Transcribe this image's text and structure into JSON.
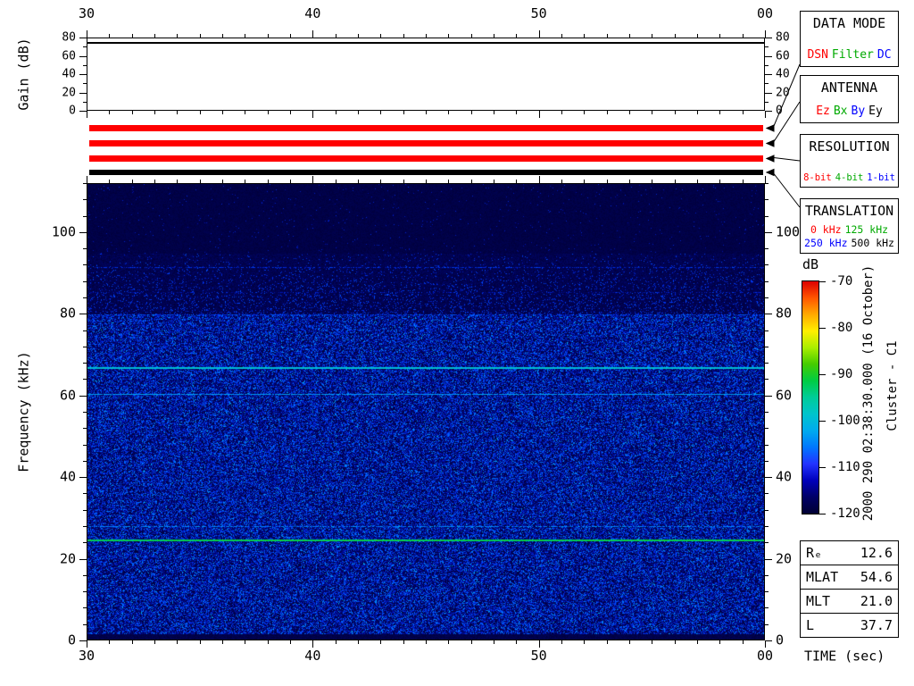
{
  "side_text": {
    "timestamp": "2000 290 02:38:30.000 (16 October)",
    "spacecraft": "Cluster - C1"
  },
  "time_axis": {
    "label": "TIME (sec)",
    "tick_values": [
      0,
      10,
      20,
      30
    ],
    "tick_labels": [
      "30",
      "40",
      "50",
      "00"
    ]
  },
  "freq_axis": {
    "label": "Frequency (kHz)",
    "tick_values": [
      0,
      20,
      40,
      60,
      80,
      100
    ],
    "tick_labels": [
      "0",
      "20",
      "40",
      "60",
      "80",
      "100"
    ]
  },
  "gain_plot": {
    "ylabel": "Gain (dB)",
    "tick_values": [
      0,
      20,
      40,
      60,
      80
    ],
    "tick_labels": [
      "0",
      "20",
      "40",
      "60",
      "80"
    ],
    "gain_line_db": 75
  },
  "status_stripes": [
    {
      "name": "data-mode",
      "color": "#ff0000"
    },
    {
      "name": "antenna",
      "color": "#ff0000"
    },
    {
      "name": "resolution",
      "color": "#ff0000"
    },
    {
      "name": "translation",
      "color": "#000000"
    }
  ],
  "panels": {
    "data_mode": {
      "title": "DATA MODE",
      "options": [
        {
          "label": "DSN",
          "color": "#ff0000"
        },
        {
          "label": "Filter",
          "color": "#00aa00"
        },
        {
          "label": "DC",
          "color": "#0000ff"
        }
      ]
    },
    "antenna": {
      "title": "ANTENNA",
      "options": [
        {
          "label": "Ez",
          "color": "#ff0000"
        },
        {
          "label": "Bx",
          "color": "#00aa00"
        },
        {
          "label": "By",
          "color": "#0000ff"
        },
        {
          "label": "Ey",
          "color": "#000000"
        }
      ]
    },
    "resolution": {
      "title": "RESOLUTION",
      "options": [
        {
          "label": "8-bit",
          "color": "#ff0000"
        },
        {
          "label": "4-bit",
          "color": "#00aa00"
        },
        {
          "label": "1-bit",
          "color": "#0000ff"
        }
      ]
    },
    "translation": {
      "title": "TRANSLATION",
      "options": [
        {
          "label": "0 kHz",
          "color": "#ff0000"
        },
        {
          "label": "125 kHz",
          "color": "#00aa00"
        },
        {
          "label": "250 kHz",
          "color": "#0000ff"
        },
        {
          "label": "500 kHz",
          "color": "#000000"
        }
      ]
    }
  },
  "colorbar": {
    "label": "dB",
    "tick_values": [
      -70,
      -80,
      -90,
      -100,
      -110,
      -120
    ],
    "tick_labels": [
      "-70",
      "-80",
      "-90",
      "-100",
      "-110",
      "-120"
    ],
    "scale_colors": [
      "#dd0000",
      "#ff5500",
      "#ffaa00",
      "#ffee00",
      "#aaee00",
      "#44cc00",
      "#00cc44",
      "#00cc99",
      "#00c4cc",
      "#00aaee",
      "#0077ff",
      "#2233ff",
      "#0000bb",
      "#000066",
      "#000033"
    ]
  },
  "ephemeris": {
    "rows": [
      {
        "label": "Rₑ",
        "value": "12.6"
      },
      {
        "label": "MLAT",
        "value": "54.6"
      },
      {
        "label": "MLT",
        "value": "21.0"
      },
      {
        "label": "L",
        "value": "37.7"
      }
    ]
  },
  "chart_data": [
    {
      "type": "line",
      "title": "Receiver gain",
      "ylabel": "Gain (dB)",
      "x_tick_labels": [
        "30",
        "40",
        "50",
        "00"
      ],
      "x_range_sec": [
        30,
        60
      ],
      "ylim": [
        0,
        80
      ],
      "y_ticks": [
        0,
        20,
        40,
        60,
        80
      ],
      "series": [
        {
          "name": "Gain",
          "x_sec": [
            30,
            60
          ],
          "values": [
            75,
            75
          ]
        }
      ]
    },
    {
      "type": "heatmap",
      "title": "WBD wideband spectrogram, Cluster - C1",
      "xlabel": "TIME (sec)",
      "ylabel": "Frequency (kHz)",
      "x_tick_labels": [
        "30",
        "40",
        "50",
        "00"
      ],
      "x_range_sec": [
        30,
        60
      ],
      "ylim": [
        0,
        112
      ],
      "y_ticks": [
        0,
        20,
        40,
        60,
        80,
        100
      ],
      "colorbar": {
        "label": "dB",
        "range": [
          -120,
          -70
        ],
        "ticks": [
          -70,
          -80,
          -90,
          -100,
          -110,
          -120
        ]
      },
      "features": {
        "broadband_noise_below_khz": 80,
        "background_level_db": -120,
        "noise_band_level_db": [
          -119,
          -105
        ],
        "spectral_lines_khz": [
          {
            "freq": 91.5,
            "level_db": -112,
            "thickness_px": 1,
            "density": 0.55,
            "appearance": "faint blue line"
          },
          {
            "freq": 85.5,
            "level_db": -114,
            "thickness_px": 1,
            "density": 0.3,
            "appearance": "very faint blue line"
          },
          {
            "freq": 80.0,
            "level_db": -110,
            "thickness_px": 1,
            "density": 0.5,
            "appearance": "noise ceiling edge"
          },
          {
            "freq": 67.0,
            "level_db": -100,
            "thickness_px": 2,
            "density": 1,
            "appearance": "bright cyan line"
          },
          {
            "freq": 60.5,
            "level_db": -104,
            "thickness_px": 1,
            "density": 0.95,
            "appearance": "cyan line"
          },
          {
            "freq": 27.8,
            "level_db": -106,
            "thickness_px": 1,
            "density": 0.7,
            "appearance": "blue line"
          },
          {
            "freq": 24.7,
            "level_db": -92,
            "thickness_px": 2,
            "density": 1,
            "appearance": "bright green line"
          }
        ]
      }
    }
  ]
}
